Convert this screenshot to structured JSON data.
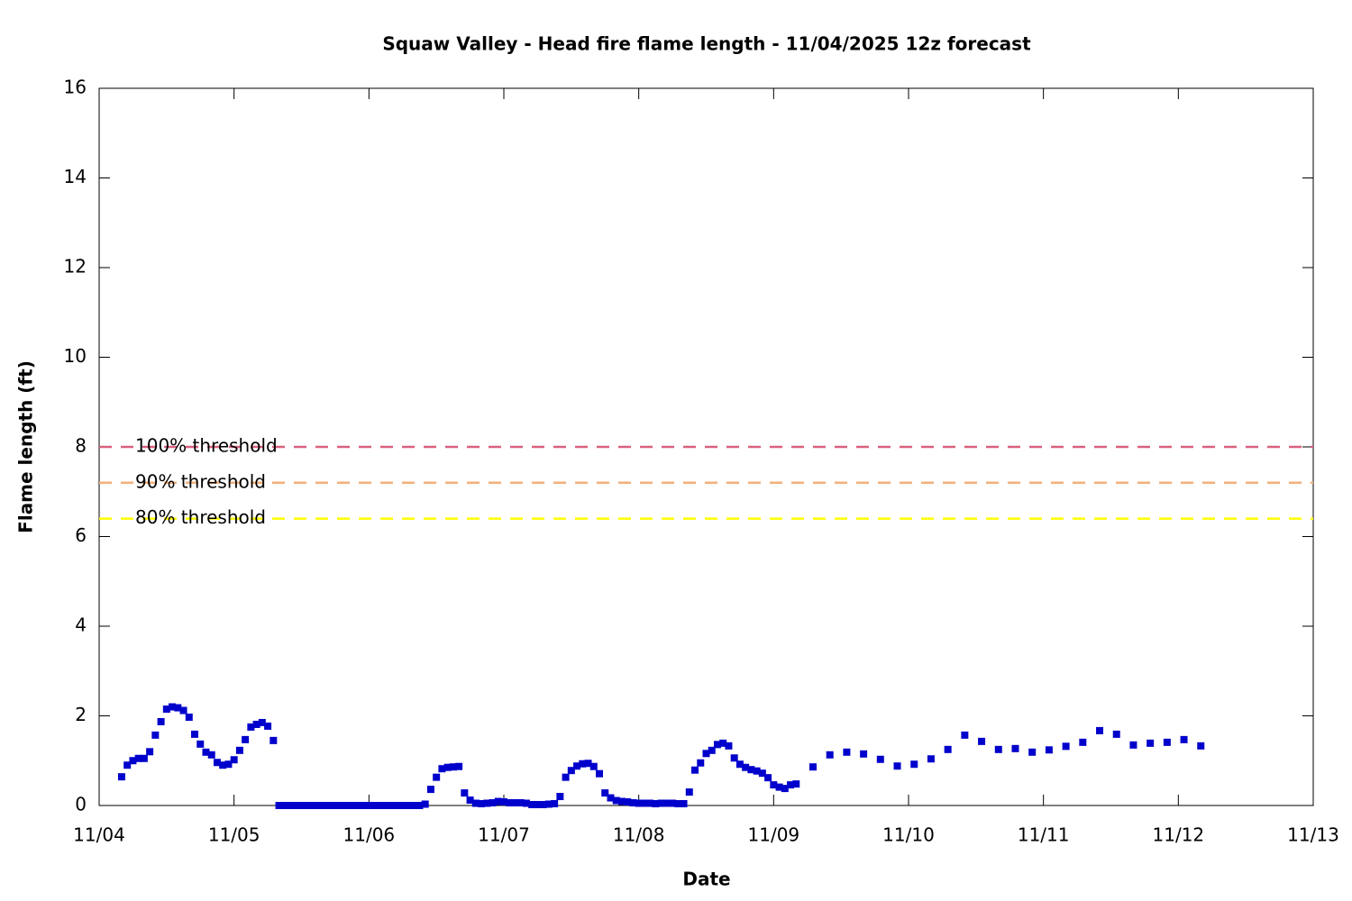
{
  "chart_data": {
    "type": "scatter",
    "title": "Squaw Valley - Head fire flame length - 11/04/2025 12z forecast",
    "x_label": "Date",
    "y_label": "Flame length (ft)",
    "xlim": [
      0,
      216
    ],
    "xticks": [
      {
        "value": 0,
        "label": "11/04"
      },
      {
        "value": 24,
        "label": "11/05"
      },
      {
        "value": 48,
        "label": "11/06"
      },
      {
        "value": 72,
        "label": "11/07"
      },
      {
        "value": 96,
        "label": "11/08"
      },
      {
        "value": 120,
        "label": "11/09"
      },
      {
        "value": 144,
        "label": "11/10"
      },
      {
        "value": 168,
        "label": "11/11"
      },
      {
        "value": 192,
        "label": "11/12"
      },
      {
        "value": 216,
        "label": "11/13"
      }
    ],
    "ylim": [
      0,
      16
    ],
    "yticks": [
      0,
      2,
      4,
      6,
      8,
      10,
      12,
      14,
      16
    ],
    "grid": false,
    "color": "#0000cc",
    "x": [
      4,
      5,
      6,
      7,
      8,
      9,
      10,
      11,
      12,
      13,
      14,
      15,
      16,
      17,
      18,
      19,
      20,
      21,
      22,
      23,
      24,
      25,
      26,
      27,
      28,
      29,
      30,
      31,
      32,
      33,
      34,
      35,
      36,
      37,
      38,
      39,
      40,
      41,
      42,
      43,
      44,
      45,
      46,
      47,
      48,
      49,
      50,
      51,
      52,
      53,
      54,
      55,
      56,
      57,
      58,
      59,
      60,
      61,
      62,
      63,
      64,
      65,
      66,
      67,
      68,
      69,
      70,
      71,
      72,
      73,
      74,
      75,
      76,
      77,
      78,
      79,
      80,
      81,
      82,
      83,
      84,
      85,
      86,
      87,
      88,
      89,
      90,
      91,
      92,
      93,
      94,
      95,
      96,
      97,
      98,
      99,
      100,
      101,
      102,
      103,
      104,
      105,
      106,
      107,
      108,
      109,
      110,
      111,
      112,
      113,
      114,
      115,
      116,
      117,
      118,
      119,
      120,
      121,
      122,
      123,
      124,
      127,
      130,
      133,
      136,
      139,
      142,
      145,
      148,
      151,
      154,
      157,
      160,
      163,
      166,
      169,
      172,
      175,
      178,
      181,
      184,
      187,
      190,
      193,
      196
    ],
    "values": [
      0.64,
      0.9,
      1.0,
      1.05,
      1.05,
      1.2,
      1.57,
      1.87,
      2.15,
      2.2,
      2.18,
      2.12,
      1.97,
      1.59,
      1.37,
      1.19,
      1.13,
      0.96,
      0.9,
      0.92,
      1.02,
      1.23,
      1.47,
      1.75,
      1.81,
      1.85,
      1.77,
      1.45,
      0,
      0,
      0,
      0,
      0,
      0,
      0,
      0,
      0,
      0,
      0,
      0,
      0,
      0,
      0,
      0,
      0,
      0,
      0,
      0,
      0,
      0,
      0,
      0,
      0,
      0,
      0.03,
      0.36,
      0.63,
      0.82,
      0.85,
      0.86,
      0.87,
      0.28,
      0.12,
      0.05,
      0.04,
      0.05,
      0.06,
      0.09,
      0.08,
      0.06,
      0.06,
      0.06,
      0.05,
      0.02,
      0.02,
      0.02,
      0.03,
      0.04,
      0.2,
      0.63,
      0.78,
      0.88,
      0.93,
      0.94,
      0.87,
      0.71,
      0.28,
      0.17,
      0.11,
      0.09,
      0.08,
      0.06,
      0.05,
      0.05,
      0.05,
      0.04,
      0.05,
      0.05,
      0.05,
      0.04,
      0.04,
      0.3,
      0.79,
      0.95,
      1.16,
      1.23,
      1.36,
      1.39,
      1.33,
      1.06,
      0.92,
      0.85,
      0.8,
      0.77,
      0.72,
      0.62,
      0.46,
      0.41,
      0.38,
      0.46,
      0.48,
      0.86,
      1.13,
      1.19,
      1.15,
      1.03,
      0.88,
      0.92,
      1.04,
      1.25,
      1.57,
      1.43,
      1.25,
      1.27,
      1.19,
      1.24,
      1.32,
      1.41,
      1.67,
      1.59,
      1.35,
      1.39,
      1.41,
      1.47,
      1.33
    ],
    "thresholds": [
      {
        "name": "100% threshold",
        "value": 8,
        "color": "#d9607f"
      },
      {
        "name": "90% threshold",
        "value": 7.2,
        "color": "#f2b07a"
      },
      {
        "name": "80% threshold",
        "value": 6.4,
        "color": "#ffff00"
      }
    ]
  }
}
